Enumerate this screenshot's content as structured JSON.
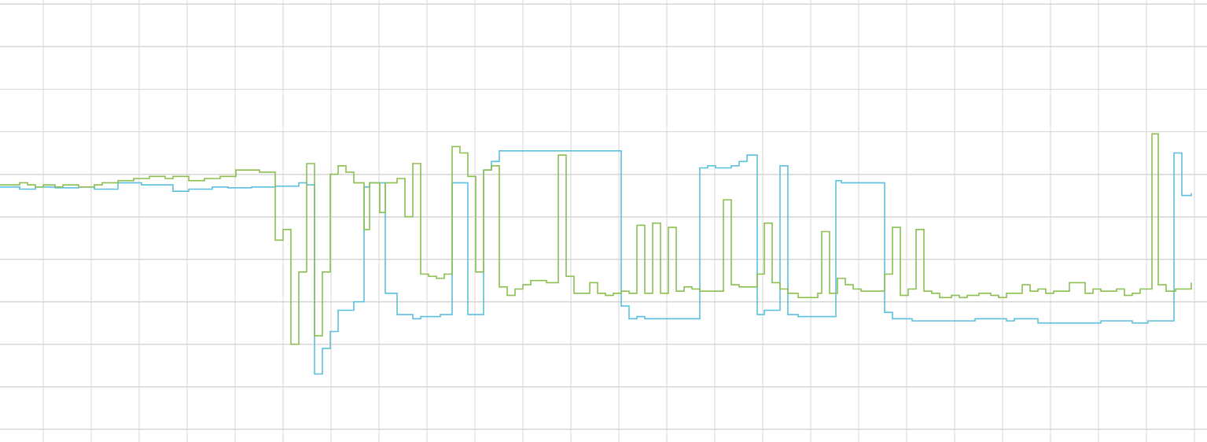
{
  "chart_data": {
    "type": "line",
    "step": true,
    "grid": true,
    "legend": "none",
    "title": "",
    "xlabel": "",
    "ylabel": "",
    "xlim": [
      0,
      153.5
    ],
    "ylim": [
      0,
      10.4
    ],
    "x_grid_step": 6.1,
    "x_grid_offset": 5.5,
    "y_grid_step": 1.0,
    "series": [
      {
        "color": "#5bc0de",
        "points": [
          [
            0,
            6.0
          ],
          [
            2.5,
            5.95
          ],
          [
            4.5,
            6.0
          ],
          [
            7,
            5.98
          ],
          [
            10,
            6.0
          ],
          [
            12,
            5.95
          ],
          [
            15,
            6.1
          ],
          [
            18,
            6.05
          ],
          [
            22,
            5.9
          ],
          [
            24,
            5.95
          ],
          [
            27,
            6.0
          ],
          [
            29,
            5.98
          ],
          [
            32,
            6.0
          ],
          [
            35,
            6.02
          ],
          [
            38,
            6.1
          ],
          [
            39,
            6.05
          ],
          [
            40,
            1.6
          ],
          [
            41,
            2.2
          ],
          [
            42,
            2.6
          ],
          [
            43,
            3.1
          ],
          [
            45,
            3.3
          ],
          [
            46.3,
            6.0
          ],
          [
            47,
            6.1
          ],
          [
            49,
            3.5
          ],
          [
            50.5,
            3.0
          ],
          [
            51.5,
            3.0
          ],
          [
            52.5,
            2.9
          ],
          [
            53.5,
            2.95
          ],
          [
            55,
            2.95
          ],
          [
            56,
            3.0
          ],
          [
            57.5,
            6.1
          ],
          [
            59.5,
            3.0
          ],
          [
            61.5,
            6.4
          ],
          [
            62.5,
            6.6
          ],
          [
            63.5,
            6.85
          ],
          [
            64.5,
            6.85
          ],
          [
            66,
            6.85
          ],
          [
            68,
            6.85
          ],
          [
            70,
            6.85
          ],
          [
            72,
            6.85
          ],
          [
            74,
            6.85
          ],
          [
            76,
            6.85
          ],
          [
            78,
            6.85
          ],
          [
            79,
            3.2
          ],
          [
            80,
            2.9
          ],
          [
            81,
            2.95
          ],
          [
            82,
            2.9
          ],
          [
            84,
            2.9
          ],
          [
            86,
            2.9
          ],
          [
            88,
            2.9
          ],
          [
            89,
            6.45
          ],
          [
            90,
            6.5
          ],
          [
            91,
            6.45
          ],
          [
            92,
            6.45
          ],
          [
            93,
            6.5
          ],
          [
            94,
            6.6
          ],
          [
            95,
            6.75
          ],
          [
            96.3,
            3.0
          ],
          [
            97.2,
            3.1
          ],
          [
            99.2,
            6.5
          ],
          [
            100.2,
            3.0
          ],
          [
            101.5,
            2.95
          ],
          [
            103,
            2.95
          ],
          [
            104,
            2.95
          ],
          [
            106.3,
            6.15
          ],
          [
            107,
            6.1
          ],
          [
            109,
            6.1
          ],
          [
            111,
            6.1
          ],
          [
            112.5,
            3.05
          ],
          [
            113.5,
            2.9
          ],
          [
            115,
            2.9
          ],
          [
            116,
            2.85
          ],
          [
            118,
            2.85
          ],
          [
            120,
            2.85
          ],
          [
            122,
            2.85
          ],
          [
            124,
            2.9
          ],
          [
            126,
            2.9
          ],
          [
            128,
            2.85
          ],
          [
            129,
            2.9
          ],
          [
            132,
            2.8
          ],
          [
            134,
            2.8
          ],
          [
            136,
            2.8
          ],
          [
            138,
            2.8
          ],
          [
            140,
            2.85
          ],
          [
            142,
            2.85
          ],
          [
            144,
            2.8
          ],
          [
            146,
            2.85
          ],
          [
            148,
            2.85
          ],
          [
            149.3,
            6.8
          ],
          [
            150.3,
            5.8
          ],
          [
            151.5,
            5.85
          ]
        ]
      },
      {
        "color": "#8bbf4f",
        "points": [
          [
            0,
            6.05
          ],
          [
            2.5,
            6.1
          ],
          [
            3.5,
            6.05
          ],
          [
            4.5,
            6.0
          ],
          [
            5.5,
            6.05
          ],
          [
            7,
            6.0
          ],
          [
            8,
            6.05
          ],
          [
            10,
            6.0
          ],
          [
            11,
            6.0
          ],
          [
            12,
            6.05
          ],
          [
            13,
            6.1
          ],
          [
            15,
            6.15
          ],
          [
            17,
            6.2
          ],
          [
            19,
            6.25
          ],
          [
            21,
            6.2
          ],
          [
            22,
            6.25
          ],
          [
            24,
            6.15
          ],
          [
            26,
            6.2
          ],
          [
            28,
            6.25
          ],
          [
            30,
            6.4
          ],
          [
            33,
            6.35
          ],
          [
            35,
            4.75
          ],
          [
            36,
            5.0
          ],
          [
            37,
            2.3
          ],
          [
            38,
            4.0
          ],
          [
            39,
            6.55
          ],
          [
            40,
            2.5
          ],
          [
            41,
            4.0
          ],
          [
            42,
            6.3
          ],
          [
            43,
            6.5
          ],
          [
            44,
            6.35
          ],
          [
            45,
            6.1
          ],
          [
            46.3,
            5.0
          ],
          [
            47,
            6.1
          ],
          [
            48.3,
            5.4
          ],
          [
            49,
            6.1
          ],
          [
            50.5,
            6.2
          ],
          [
            51.5,
            5.3
          ],
          [
            52.5,
            6.55
          ],
          [
            53.5,
            3.95
          ],
          [
            54.5,
            3.9
          ],
          [
            55.5,
            3.85
          ],
          [
            56.5,
            3.95
          ],
          [
            57.5,
            6.95
          ],
          [
            58.5,
            6.8
          ],
          [
            59.5,
            6.25
          ],
          [
            60.5,
            4.0
          ],
          [
            61.5,
            6.4
          ],
          [
            62.5,
            6.5
          ],
          [
            63.5,
            3.65
          ],
          [
            64.5,
            3.45
          ],
          [
            65.5,
            3.6
          ],
          [
            66.5,
            3.7
          ],
          [
            67.5,
            3.8
          ],
          [
            68.5,
            3.8
          ],
          [
            69.5,
            3.75
          ],
          [
            71,
            6.75
          ],
          [
            72,
            3.9
          ],
          [
            73,
            3.5
          ],
          [
            75,
            3.75
          ],
          [
            76,
            3.5
          ],
          [
            77,
            3.45
          ],
          [
            78,
            3.5
          ],
          [
            79,
            3.55
          ],
          [
            80,
            3.5
          ],
          [
            81,
            5.1
          ],
          [
            82,
            3.5
          ],
          [
            83,
            5.15
          ],
          [
            84,
            3.5
          ],
          [
            85,
            5.05
          ],
          [
            86,
            3.55
          ],
          [
            87,
            3.65
          ],
          [
            88,
            3.6
          ],
          [
            89,
            3.55
          ],
          [
            90,
            3.55
          ],
          [
            92,
            5.7
          ],
          [
            93,
            3.7
          ],
          [
            94,
            3.65
          ],
          [
            96.3,
            3.95
          ],
          [
            97.2,
            5.15
          ],
          [
            98.2,
            3.75
          ],
          [
            99.2,
            3.6
          ],
          [
            100.2,
            3.5
          ],
          [
            101.5,
            3.4
          ],
          [
            103,
            3.4
          ],
          [
            104,
            3.5
          ],
          [
            104.5,
            4.95
          ],
          [
            105.5,
            3.5
          ],
          [
            106.5,
            3.85
          ],
          [
            107.5,
            3.7
          ],
          [
            108.5,
            3.6
          ],
          [
            109.5,
            3.55
          ],
          [
            111,
            3.55
          ],
          [
            112.5,
            3.95
          ],
          [
            113.5,
            5.05
          ],
          [
            114.5,
            3.45
          ],
          [
            115.5,
            3.6
          ],
          [
            116.5,
            5.0
          ],
          [
            117.5,
            3.55
          ],
          [
            118.5,
            3.5
          ],
          [
            119.5,
            3.4
          ],
          [
            121,
            3.45
          ],
          [
            122,
            3.4
          ],
          [
            123,
            3.45
          ],
          [
            124.5,
            3.5
          ],
          [
            126,
            3.45
          ],
          [
            127,
            3.4
          ],
          [
            128,
            3.5
          ],
          [
            130,
            3.7
          ],
          [
            131,
            3.55
          ],
          [
            132,
            3.6
          ],
          [
            133,
            3.5
          ],
          [
            134,
            3.55
          ],
          [
            136,
            3.75
          ],
          [
            138,
            3.5
          ],
          [
            139,
            3.6
          ],
          [
            140,
            3.55
          ],
          [
            142,
            3.6
          ],
          [
            143,
            3.45
          ],
          [
            144,
            3.5
          ],
          [
            145,
            3.6
          ],
          [
            146.5,
            7.25
          ],
          [
            147.3,
            3.7
          ],
          [
            148.3,
            3.55
          ],
          [
            149.5,
            3.6
          ],
          [
            151.5,
            3.75
          ]
        ]
      }
    ]
  }
}
